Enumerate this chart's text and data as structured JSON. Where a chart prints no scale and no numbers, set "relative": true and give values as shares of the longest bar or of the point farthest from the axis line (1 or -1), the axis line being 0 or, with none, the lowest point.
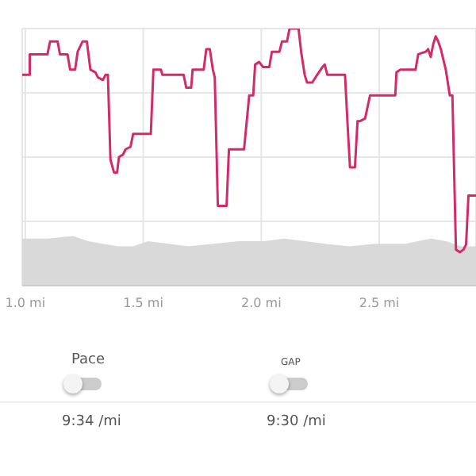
{
  "chart_data": {
    "type": "line",
    "relative": true,
    "xlim": [
      0.987,
      2.91
    ],
    "xticks": [
      {
        "value": 1,
        "label": "1.0 mi"
      },
      {
        "value": 1.5,
        "label": "1.5 mi"
      },
      {
        "value": 2,
        "label": "2.0 mi"
      },
      {
        "value": 2.5,
        "label": "2.5 mi"
      }
    ],
    "grid": true,
    "series": [
      {
        "type": "area",
        "color": "#d9d9d9",
        "x": [
          0.987,
          1.094,
          1.201,
          1.265,
          1.329,
          1.393,
          1.457,
          1.521,
          1.607,
          1.692,
          1.799,
          1.906,
          2.013,
          2.098,
          2.184,
          2.269,
          2.376,
          2.483,
          2.611,
          2.718,
          2.782,
          2.846,
          2.91
        ],
        "values": [
          0.18,
          0.18,
          0.19,
          0.17,
          0.16,
          0.15,
          0.15,
          0.17,
          0.16,
          0.15,
          0.16,
          0.17,
          0.17,
          0.18,
          0.17,
          0.16,
          0.15,
          0.16,
          0.16,
          0.18,
          0.17,
          0.15,
          0.15
        ]
      },
      {
        "color": "#d42a6a",
        "x": [
          0.987,
          1.019,
          1.019,
          1.094,
          1.105,
          1.137,
          1.147,
          1.179,
          1.19,
          1.211,
          1.222,
          1.243,
          1.261,
          1.276,
          1.297,
          1.308,
          1.329,
          1.34,
          1.35,
          1.361,
          1.376,
          1.389,
          1.397,
          1.414,
          1.425,
          1.446,
          1.457,
          1.532,
          1.543,
          1.575,
          1.581,
          1.671,
          1.682,
          1.703,
          1.709,
          1.756,
          1.767,
          1.782,
          1.795,
          1.803,
          1.816,
          1.853,
          1.863,
          1.927,
          1.949,
          1.966,
          1.974,
          1.991,
          2.008,
          2.034,
          2.045,
          2.077,
          2.088,
          2.109,
          2.12,
          2.158,
          2.169,
          2.184,
          2.194,
          2.216,
          2.237,
          2.259,
          2.269,
          2.28,
          2.355,
          2.365,
          2.376,
          2.397,
          2.408,
          2.419,
          2.44,
          2.461,
          2.568,
          2.573,
          2.59,
          2.654,
          2.665,
          2.697,
          2.707,
          2.718,
          2.729,
          2.739,
          2.75,
          2.761,
          2.782,
          2.799,
          2.81,
          2.825,
          2.842,
          2.857,
          2.868,
          2.878,
          2.91
        ],
        "values": [
          0.82,
          0.82,
          0.9,
          0.9,
          0.95,
          0.95,
          0.9,
          0.9,
          0.84,
          0.84,
          0.91,
          0.95,
          0.95,
          0.84,
          0.83,
          0.81,
          0.8,
          0.82,
          0.82,
          0.49,
          0.44,
          0.44,
          0.5,
          0.51,
          0.53,
          0.54,
          0.59,
          0.59,
          0.84,
          0.84,
          0.82,
          0.82,
          0.77,
          0.77,
          0.84,
          0.84,
          0.92,
          0.92,
          0.84,
          0.81,
          0.31,
          0.31,
          0.53,
          0.53,
          0.74,
          0.74,
          0.86,
          0.87,
          0.85,
          0.85,
          0.91,
          0.91,
          0.95,
          0.95,
          1,
          1,
          0.91,
          0.82,
          0.79,
          0.79,
          0.82,
          0.85,
          0.86,
          0.82,
          0.82,
          0.64,
          0.46,
          0.46,
          0.64,
          0.64,
          0.65,
          0.74,
          0.74,
          0.83,
          0.84,
          0.84,
          0.9,
          0.91,
          0.92,
          0.89,
          0.94,
          0.97,
          0.95,
          0.92,
          0.84,
          0.74,
          0.74,
          0.14,
          0.13,
          0.14,
          0.16,
          0.35,
          0.35
        ]
      }
    ],
    "annotations": [
      "Pace",
      "GAP",
      "9:34 /mi",
      "9:30 /mi"
    ]
  }
}
